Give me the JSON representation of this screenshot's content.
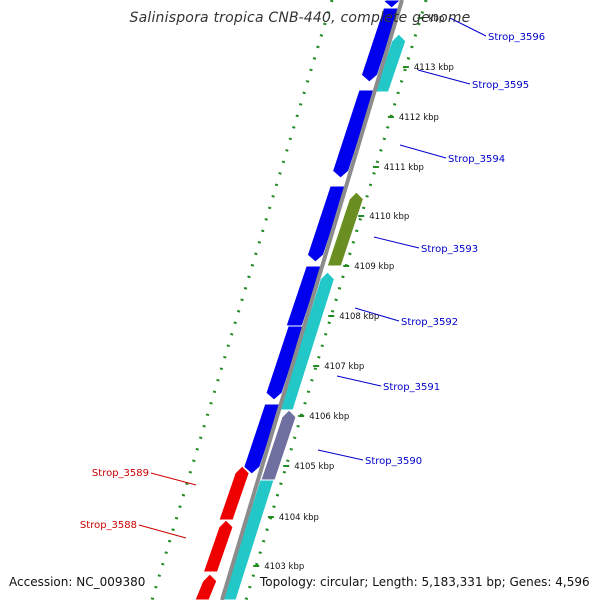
{
  "title": "Salinispora tropica CNB-440, complete genome",
  "footer": {
    "accession": "Accession: NC_009380",
    "topology": "Topology: circular; Length: 5,183,331 bp; Genes: 4,596"
  },
  "ruler": {
    "unit": "kbp",
    "ticks": [
      {
        "label": "kbp"
      },
      {
        "label": "4113 kbp"
      },
      {
        "label": "4112 kbp"
      },
      {
        "label": "4111 kbp"
      },
      {
        "label": "4110 kbp"
      },
      {
        "label": "4109 kbp"
      },
      {
        "label": "4108 kbp"
      },
      {
        "label": "4107 kbp"
      },
      {
        "label": "4106 kbp"
      },
      {
        "label": "4105 kbp"
      },
      {
        "label": "4104 kbp"
      },
      {
        "label": "4103 kbp"
      }
    ]
  },
  "gene_labels": [
    {
      "text": "Strop_3596",
      "strand": "forward",
      "color": "#0000cc"
    },
    {
      "text": "Strop_3595",
      "strand": "forward",
      "color": "#0000cc"
    },
    {
      "text": "Strop_3594",
      "strand": "forward",
      "color": "#0000cc"
    },
    {
      "text": "Strop_3593",
      "strand": "forward",
      "color": "#0000cc"
    },
    {
      "text": "Strop_3592",
      "strand": "forward",
      "color": "#0000cc"
    },
    {
      "text": "Strop_3591",
      "strand": "forward",
      "color": "#0000cc"
    },
    {
      "text": "Strop_3590",
      "strand": "forward",
      "color": "#0000cc"
    },
    {
      "text": "Strop_3589",
      "strand": "reverse",
      "color": "#cc0000"
    },
    {
      "text": "Strop_3588",
      "strand": "reverse",
      "color": "#cc0000"
    }
  ],
  "colors": {
    "backbone": "#8c8c8c",
    "forward_cds": "#0000ee",
    "reverse_cds": "#ee0000",
    "rna_track": "#22c8c8",
    "highlight": "#6b8e23",
    "dotted_ring": "#228b22"
  }
}
